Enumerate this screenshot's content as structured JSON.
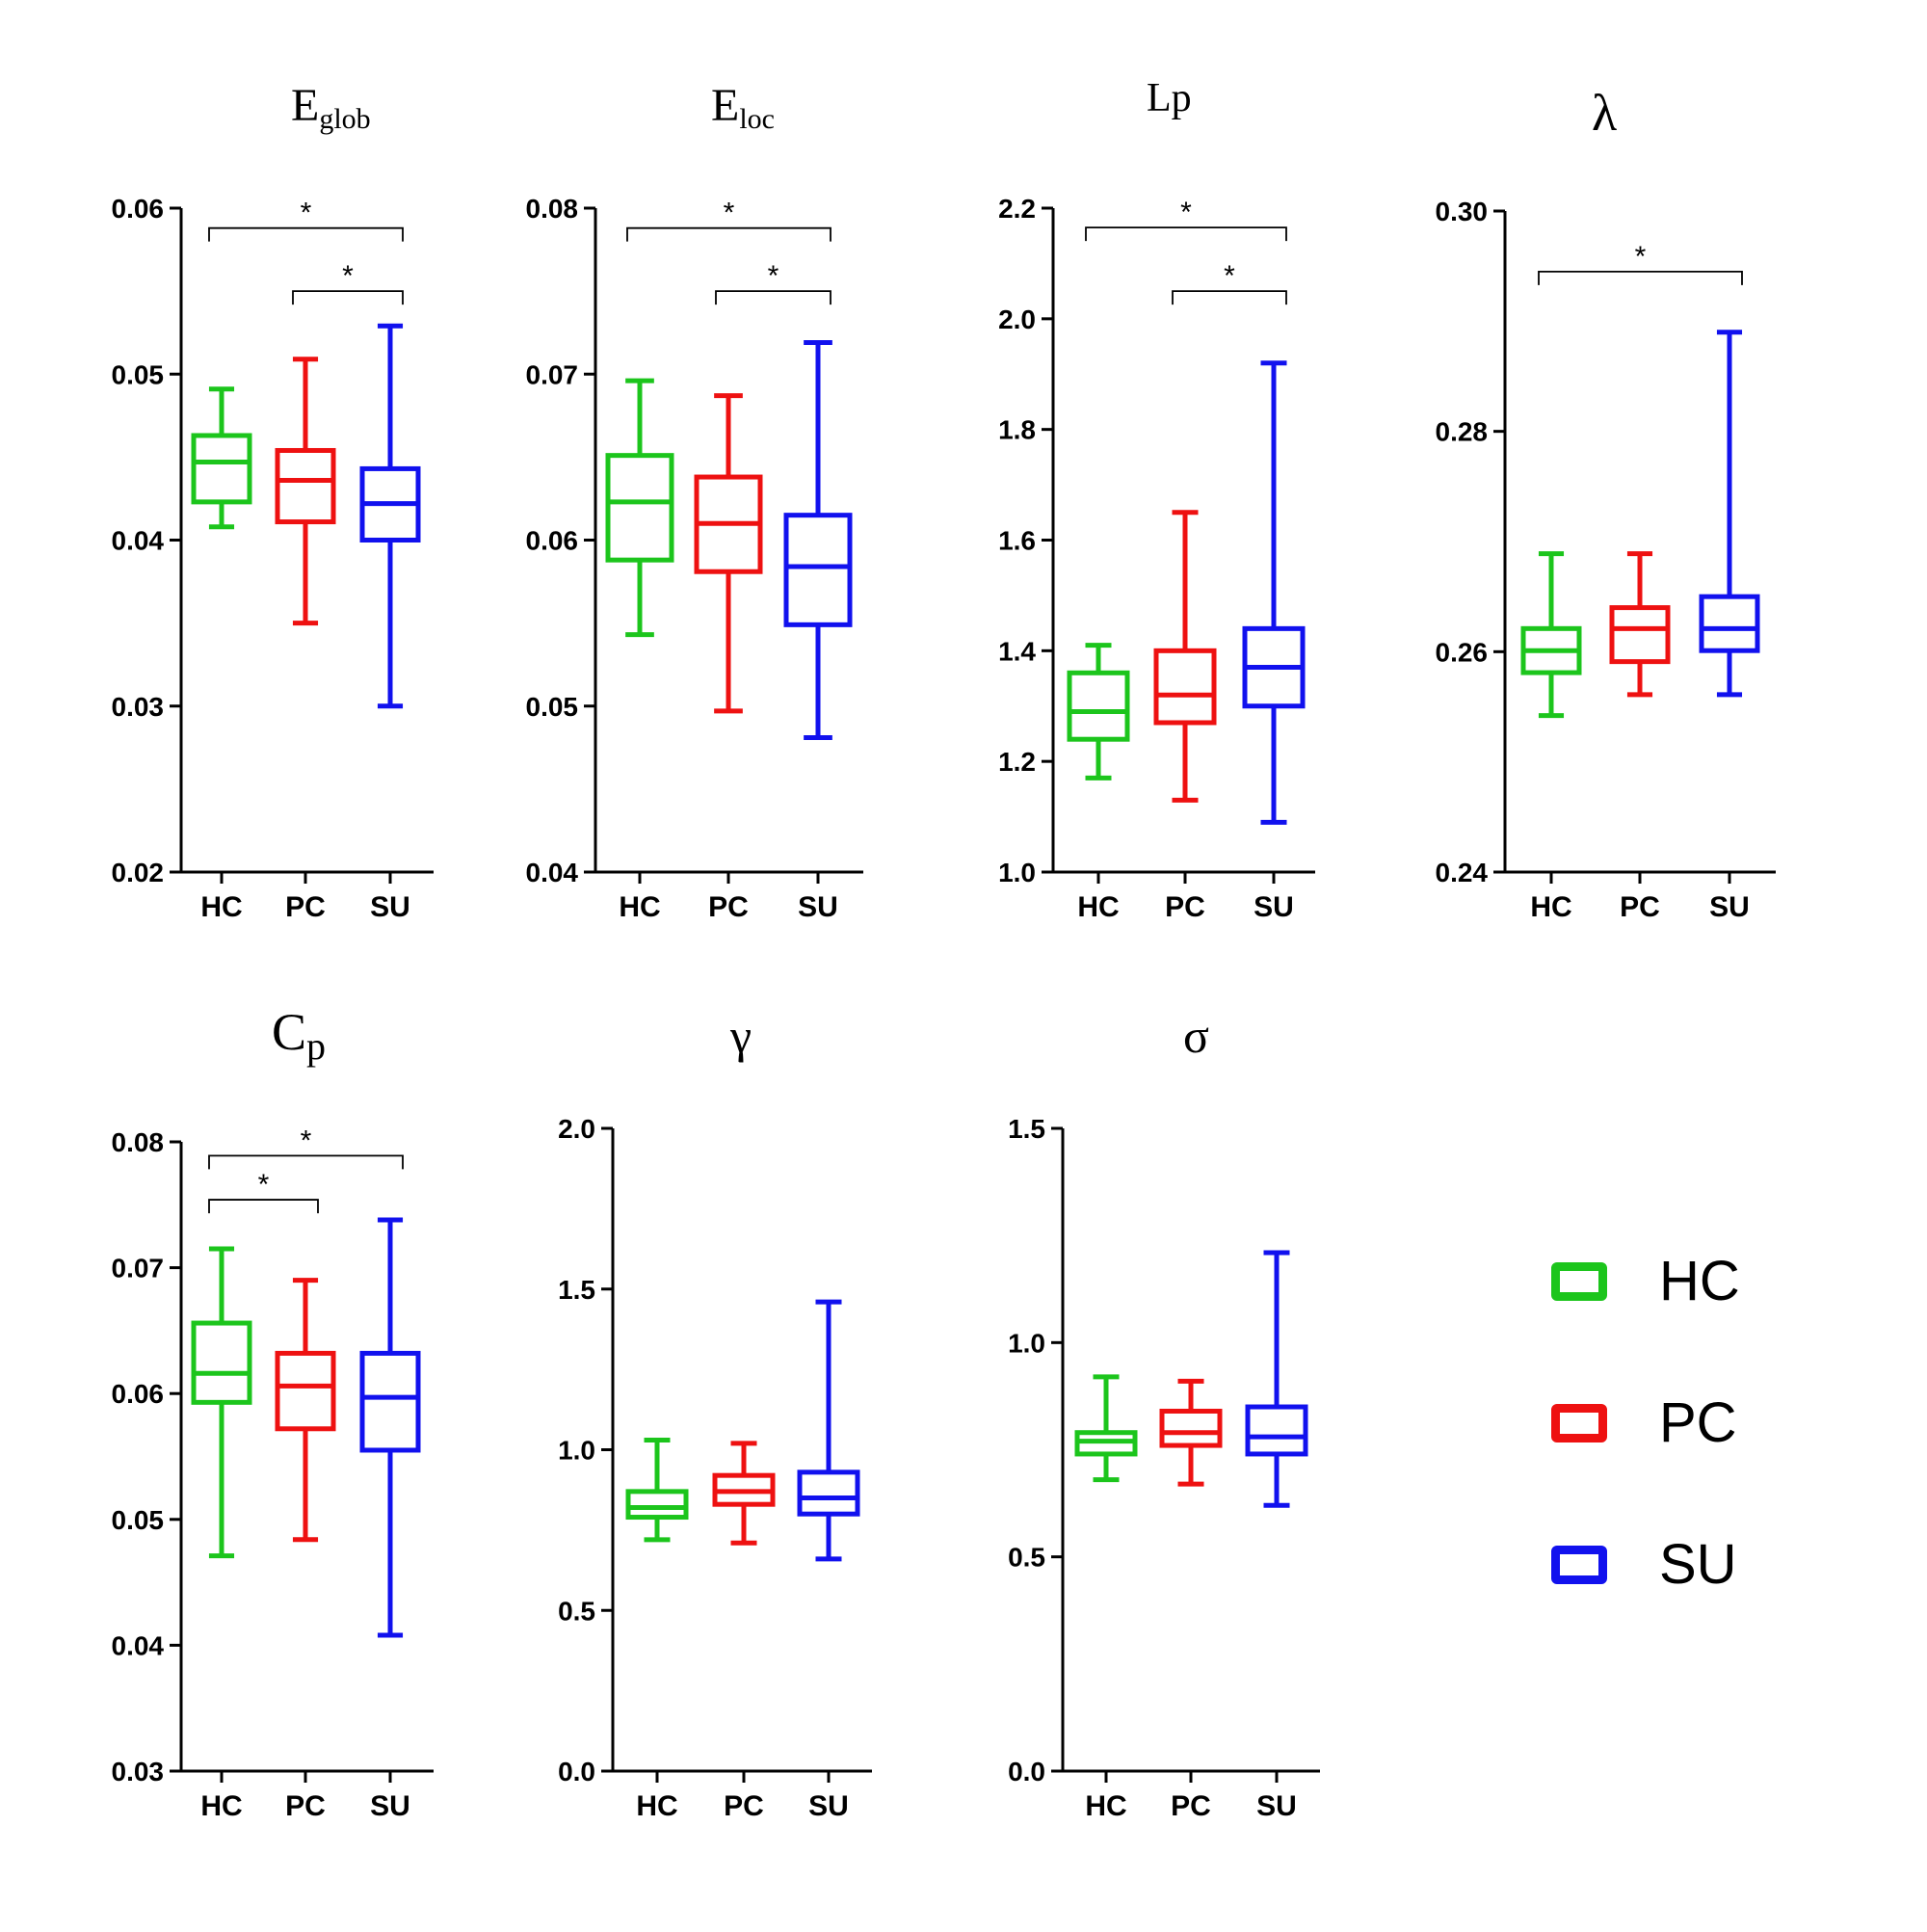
{
  "legend": {
    "items": [
      {
        "label": "HC",
        "color": "#1cc51c"
      },
      {
        "label": "PC",
        "color": "#ee1111"
      },
      {
        "label": "SU",
        "color": "#1111ee"
      }
    ]
  },
  "chart_data": [
    {
      "type": "box",
      "title_main": "E",
      "title_sub": "glob",
      "categories": [
        "HC",
        "PC",
        "SU"
      ],
      "ylim": [
        0.02,
        0.06
      ],
      "yticks": [
        "0.02",
        "0.03",
        "0.04",
        "0.05",
        "0.06"
      ],
      "series": [
        {
          "name": "HC",
          "whisker_low": 0.0408,
          "q1": 0.0423,
          "median": 0.0447,
          "q3": 0.0463,
          "whisker_high": 0.0491
        },
        {
          "name": "PC",
          "whisker_low": 0.035,
          "q1": 0.0411,
          "median": 0.0436,
          "q3": 0.0454,
          "whisker_high": 0.0509
        },
        {
          "name": "SU",
          "whisker_low": 0.03,
          "q1": 0.04,
          "median": 0.0422,
          "q3": 0.0443,
          "whisker_high": 0.0529
        }
      ],
      "significance": [
        {
          "from": "HC",
          "to": "SU",
          "label": "*",
          "level": 0.0588
        },
        {
          "from": "PC",
          "to": "SU",
          "label": "*",
          "level": 0.055
        }
      ]
    },
    {
      "type": "box",
      "title_main": "E",
      "title_sub": "loc",
      "categories": [
        "HC",
        "PC",
        "SU"
      ],
      "ylim": [
        0.04,
        0.08
      ],
      "yticks": [
        "0.04",
        "0.05",
        "0.06",
        "0.07",
        "0.08"
      ],
      "series": [
        {
          "name": "HC",
          "whisker_low": 0.0543,
          "q1": 0.0588,
          "median": 0.0623,
          "q3": 0.0651,
          "whisker_high": 0.0696
        },
        {
          "name": "PC",
          "whisker_low": 0.0497,
          "q1": 0.0581,
          "median": 0.061,
          "q3": 0.0638,
          "whisker_high": 0.0687
        },
        {
          "name": "SU",
          "whisker_low": 0.0481,
          "q1": 0.0549,
          "median": 0.0584,
          "q3": 0.0615,
          "whisker_high": 0.0719
        }
      ],
      "significance": [
        {
          "from": "HC",
          "to": "SU",
          "label": "*",
          "level": 0.0788
        },
        {
          "from": "PC",
          "to": "SU",
          "label": "*",
          "level": 0.075
        }
      ]
    },
    {
      "type": "box",
      "title_main": "Lp",
      "title_sub": "",
      "categories": [
        "HC",
        "PC",
        "SU"
      ],
      "ylim": [
        1.0,
        2.2
      ],
      "yticks": [
        "1.0",
        "1.2",
        "1.4",
        "1.6",
        "1.8",
        "2.0",
        "2.2"
      ],
      "series": [
        {
          "name": "HC",
          "whisker_low": 1.17,
          "q1": 1.24,
          "median": 1.29,
          "q3": 1.36,
          "whisker_high": 1.41
        },
        {
          "name": "PC",
          "whisker_low": 1.13,
          "q1": 1.27,
          "median": 1.32,
          "q3": 1.4,
          "whisker_high": 1.65
        },
        {
          "name": "SU",
          "whisker_low": 1.09,
          "q1": 1.3,
          "median": 1.37,
          "q3": 1.44,
          "whisker_high": 1.92
        }
      ],
      "significance": [
        {
          "from": "HC",
          "to": "SU",
          "label": "*",
          "level": 2.165
        },
        {
          "from": "PC",
          "to": "SU",
          "label": "*",
          "level": 2.05
        }
      ]
    },
    {
      "type": "box",
      "title_main": "λ",
      "title_sub": "",
      "categories": [
        "HC",
        "PC",
        "SU"
      ],
      "ylim": [
        0.24,
        0.3
      ],
      "yticks": [
        "0.24",
        "0.26",
        "0.28",
        "0.30"
      ],
      "series": [
        {
          "name": "HC",
          "whisker_low": 0.2542,
          "q1": 0.2581,
          "median": 0.2601,
          "q3": 0.2621,
          "whisker_high": 0.2689
        },
        {
          "name": "PC",
          "whisker_low": 0.2561,
          "q1": 0.2591,
          "median": 0.2621,
          "q3": 0.264,
          "whisker_high": 0.2689
        },
        {
          "name": "SU",
          "whisker_low": 0.2561,
          "q1": 0.2601,
          "median": 0.2621,
          "q3": 0.265,
          "whisker_high": 0.289
        }
      ],
      "significance": [
        {
          "from": "HC",
          "to": "SU",
          "label": "*",
          "level": 0.2945
        }
      ]
    },
    {
      "type": "box",
      "title_main": "C",
      "title_sub": "p",
      "categories": [
        "HC",
        "PC",
        "SU"
      ],
      "ylim": [
        0.03,
        0.08
      ],
      "yticks": [
        "0.03",
        "0.04",
        "0.05",
        "0.06",
        "0.07",
        "0.08"
      ],
      "series": [
        {
          "name": "HC",
          "whisker_low": 0.0471,
          "q1": 0.0593,
          "median": 0.0616,
          "q3": 0.0656,
          "whisker_high": 0.0715
        },
        {
          "name": "PC",
          "whisker_low": 0.0484,
          "q1": 0.0572,
          "median": 0.0606,
          "q3": 0.0632,
          "whisker_high": 0.069
        },
        {
          "name": "SU",
          "whisker_low": 0.0408,
          "q1": 0.0555,
          "median": 0.0597,
          "q3": 0.0632,
          "whisker_high": 0.0738
        }
      ],
      "significance": [
        {
          "from": "HC",
          "to": "SU",
          "label": "*",
          "level": 0.0789
        },
        {
          "from": "HC",
          "to": "PC",
          "label": "*",
          "level": 0.0754
        }
      ]
    },
    {
      "type": "box",
      "title_main": "γ",
      "title_sub": "",
      "categories": [
        "HC",
        "PC",
        "SU"
      ],
      "ylim": [
        0.0,
        2.0
      ],
      "yticks": [
        "0.0",
        "0.5",
        "1.0",
        "1.5",
        "2.0"
      ],
      "series": [
        {
          "name": "HC",
          "whisker_low": 0.72,
          "q1": 0.79,
          "median": 0.82,
          "q3": 0.87,
          "whisker_high": 1.03
        },
        {
          "name": "PC",
          "whisker_low": 0.71,
          "q1": 0.83,
          "median": 0.87,
          "q3": 0.92,
          "whisker_high": 1.02
        },
        {
          "name": "SU",
          "whisker_low": 0.66,
          "q1": 0.8,
          "median": 0.85,
          "q3": 0.93,
          "whisker_high": 1.46
        }
      ],
      "significance": []
    },
    {
      "type": "box",
      "title_main": "σ",
      "title_sub": "",
      "categories": [
        "HC",
        "PC",
        "SU"
      ],
      "ylim": [
        0.0,
        1.5
      ],
      "yticks": [
        "0.0",
        "0.5",
        "1.0",
        "1.5"
      ],
      "series": [
        {
          "name": "HC",
          "whisker_low": 0.68,
          "q1": 0.74,
          "median": 0.77,
          "q3": 0.79,
          "whisker_high": 0.92
        },
        {
          "name": "PC",
          "whisker_low": 0.67,
          "q1": 0.76,
          "median": 0.79,
          "q3": 0.84,
          "whisker_high": 0.91
        },
        {
          "name": "SU",
          "whisker_low": 0.62,
          "q1": 0.74,
          "median": 0.78,
          "q3": 0.85,
          "whisker_high": 1.21
        }
      ],
      "significance": []
    }
  ]
}
